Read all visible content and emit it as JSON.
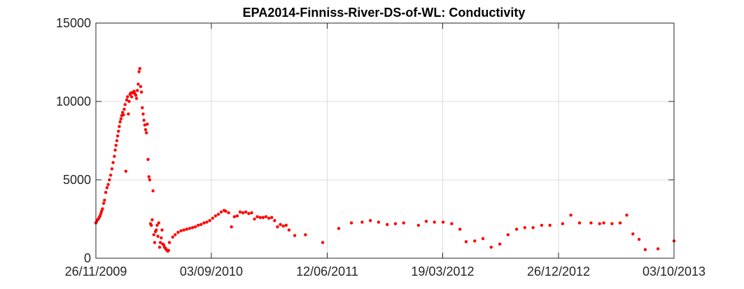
{
  "chart_data": {
    "type": "scatter",
    "title": "EPA2014-Finniss-River-DS-of-WL: Conductivity",
    "xlabel": "",
    "ylabel": "",
    "x_range": [
      "2009-11-26",
      "2013-10-03"
    ],
    "ylim": [
      0,
      15000
    ],
    "x_ticks": [
      "26/11/2009",
      "03/09/2010",
      "12/06/2011",
      "19/03/2012",
      "26/12/2012",
      "03/10/2013"
    ],
    "y_ticks": [
      "0",
      "5000",
      "10000",
      "15000"
    ],
    "grid": true,
    "legend": "none",
    "marker_color": "#ff0000",
    "series": [
      {
        "points": [
          [
            "2009-11-26",
            2250
          ],
          [
            "2009-11-28",
            2350
          ],
          [
            "2009-11-30",
            2450
          ],
          [
            "2009-12-02",
            2500
          ],
          [
            "2009-12-04",
            2600
          ],
          [
            "2009-12-06",
            2700
          ],
          [
            "2009-12-08",
            2850
          ],
          [
            "2009-12-10",
            3000
          ],
          [
            "2009-12-12",
            3150
          ],
          [
            "2009-12-15",
            3500
          ],
          [
            "2009-12-17",
            3700
          ],
          [
            "2009-12-20",
            4200
          ],
          [
            "2009-12-23",
            4500
          ],
          [
            "2009-12-26",
            4700
          ],
          [
            "2009-12-29",
            5000
          ],
          [
            "2010-01-01",
            5300
          ],
          [
            "2010-01-04",
            5700
          ],
          [
            "2010-01-07",
            6100
          ],
          [
            "2010-01-10",
            6500
          ],
          [
            "2010-01-12",
            6900
          ],
          [
            "2010-01-14",
            7200
          ],
          [
            "2010-01-16",
            7500
          ],
          [
            "2010-01-18",
            7800
          ],
          [
            "2010-01-20",
            8100
          ],
          [
            "2010-01-22",
            8400
          ],
          [
            "2010-01-24",
            8700
          ],
          [
            "2010-01-26",
            8900
          ],
          [
            "2010-01-28",
            9100
          ],
          [
            "2010-01-30",
            9300
          ],
          [
            "2010-02-01",
            9150
          ],
          [
            "2010-02-03",
            9500
          ],
          [
            "2010-02-05",
            9800
          ],
          [
            "2010-02-07",
            5550
          ],
          [
            "2010-02-09",
            10100
          ],
          [
            "2010-02-11",
            10300
          ],
          [
            "2010-02-13",
            9200
          ],
          [
            "2010-02-15",
            10000
          ],
          [
            "2010-02-17",
            10450
          ],
          [
            "2010-02-19",
            10550
          ],
          [
            "2010-02-21",
            10300
          ],
          [
            "2010-02-23",
            10550
          ],
          [
            "2010-02-25",
            10600
          ],
          [
            "2010-02-27",
            10650
          ],
          [
            "2010-03-01",
            10500
          ],
          [
            "2010-03-03",
            10400
          ],
          [
            "2010-03-05",
            10200
          ],
          [
            "2010-03-07",
            10700
          ],
          [
            "2010-03-09",
            11100
          ],
          [
            "2010-03-11",
            11900
          ],
          [
            "2010-03-13",
            12100
          ],
          [
            "2010-03-15",
            10950
          ],
          [
            "2010-03-17",
            10600
          ],
          [
            "2010-03-19",
            9600
          ],
          [
            "2010-03-21",
            9200
          ],
          [
            "2010-03-23",
            8800
          ],
          [
            "2010-03-25",
            8500
          ],
          [
            "2010-03-27",
            8200
          ],
          [
            "2010-03-29",
            8000
          ],
          [
            "2010-03-31",
            8550
          ],
          [
            "2010-04-02",
            6300
          ],
          [
            "2010-04-04",
            5200
          ],
          [
            "2010-04-06",
            5000
          ],
          [
            "2010-04-08",
            2200
          ],
          [
            "2010-04-10",
            2100
          ],
          [
            "2010-04-12",
            2450
          ],
          [
            "2010-04-14",
            4300
          ],
          [
            "2010-04-16",
            1500
          ],
          [
            "2010-04-18",
            1000
          ],
          [
            "2010-04-20",
            1700
          ],
          [
            "2010-04-22",
            1800
          ],
          [
            "2010-04-24",
            2100
          ],
          [
            "2010-04-26",
            1400
          ],
          [
            "2010-04-28",
            2250
          ],
          [
            "2010-04-30",
            700
          ],
          [
            "2010-05-02",
            1000
          ],
          [
            "2010-05-04",
            1300
          ],
          [
            "2010-05-06",
            1800
          ],
          [
            "2010-05-08",
            900
          ],
          [
            "2010-05-10",
            850
          ],
          [
            "2010-05-12",
            700
          ],
          [
            "2010-05-14",
            650
          ],
          [
            "2010-05-16",
            550
          ],
          [
            "2010-05-18",
            520
          ],
          [
            "2010-05-20",
            450
          ],
          [
            "2010-05-22",
            500
          ],
          [
            "2010-05-24",
            1000
          ],
          [
            "2010-06-01",
            1350
          ],
          [
            "2010-06-07",
            1500
          ],
          [
            "2010-06-14",
            1650
          ],
          [
            "2010-06-21",
            1750
          ],
          [
            "2010-06-28",
            1800
          ],
          [
            "2010-07-05",
            1850
          ],
          [
            "2010-07-12",
            1900
          ],
          [
            "2010-07-19",
            1950
          ],
          [
            "2010-07-26",
            2000
          ],
          [
            "2010-08-02",
            2100
          ],
          [
            "2010-08-09",
            2150
          ],
          [
            "2010-08-16",
            2250
          ],
          [
            "2010-08-23",
            2300
          ],
          [
            "2010-08-30",
            2400
          ],
          [
            "2010-09-06",
            2550
          ],
          [
            "2010-09-13",
            2700
          ],
          [
            "2010-09-20",
            2800
          ],
          [
            "2010-09-27",
            2950
          ],
          [
            "2010-10-04",
            3050
          ],
          [
            "2010-10-08",
            3000
          ],
          [
            "2010-10-15",
            2900
          ],
          [
            "2010-10-22",
            2000
          ],
          [
            "2010-10-29",
            2650
          ],
          [
            "2010-11-05",
            2700
          ],
          [
            "2010-11-12",
            2950
          ],
          [
            "2010-11-19",
            2900
          ],
          [
            "2010-11-26",
            2950
          ],
          [
            "2010-12-03",
            2850
          ],
          [
            "2010-12-10",
            2900
          ],
          [
            "2010-12-17",
            2500
          ],
          [
            "2010-12-24",
            2650
          ],
          [
            "2010-12-31",
            2600
          ],
          [
            "2011-01-07",
            2600
          ],
          [
            "2011-01-14",
            2650
          ],
          [
            "2011-01-21",
            2550
          ],
          [
            "2011-01-28",
            2600
          ],
          [
            "2011-02-04",
            2400
          ],
          [
            "2011-02-11",
            2000
          ],
          [
            "2011-02-18",
            2150
          ],
          [
            "2011-02-25",
            2050
          ],
          [
            "2011-03-04",
            2100
          ],
          [
            "2011-03-11",
            1800
          ],
          [
            "2011-03-25",
            1450
          ],
          [
            "2011-04-20",
            1500
          ],
          [
            "2011-06-01",
            1000
          ],
          [
            "2011-07-10",
            1900
          ],
          [
            "2011-08-10",
            2250
          ],
          [
            "2011-09-05",
            2300
          ],
          [
            "2011-09-25",
            2400
          ],
          [
            "2011-10-15",
            2300
          ],
          [
            "2011-11-05",
            2150
          ],
          [
            "2011-11-25",
            2200
          ],
          [
            "2011-12-15",
            2250
          ],
          [
            "2012-01-20",
            2100
          ],
          [
            "2012-02-08",
            2350
          ],
          [
            "2012-02-28",
            2300
          ],
          [
            "2012-03-20",
            2300
          ],
          [
            "2012-04-10",
            2200
          ],
          [
            "2012-04-30",
            1850
          ],
          [
            "2012-05-15",
            1050
          ],
          [
            "2012-06-05",
            1100
          ],
          [
            "2012-06-25",
            1250
          ],
          [
            "2012-07-15",
            700
          ],
          [
            "2012-08-05",
            900
          ],
          [
            "2012-08-25",
            1500
          ],
          [
            "2012-09-15",
            1850
          ],
          [
            "2012-10-05",
            1950
          ],
          [
            "2012-10-25",
            1950
          ],
          [
            "2012-11-15",
            2100
          ],
          [
            "2012-12-05",
            2100
          ],
          [
            "2013-01-05",
            2200
          ],
          [
            "2013-01-25",
            2750
          ],
          [
            "2013-02-15",
            2250
          ],
          [
            "2013-03-15",
            2250
          ],
          [
            "2013-04-05",
            2200
          ],
          [
            "2013-04-15",
            2250
          ],
          [
            "2013-05-05",
            2200
          ],
          [
            "2013-05-25",
            2250
          ],
          [
            "2013-06-10",
            2750
          ],
          [
            "2013-06-25",
            1550
          ],
          [
            "2013-07-10",
            1200
          ],
          [
            "2013-07-25",
            550
          ],
          [
            "2013-08-25",
            600
          ],
          [
            "2013-10-03",
            1100
          ]
        ]
      }
    ]
  }
}
